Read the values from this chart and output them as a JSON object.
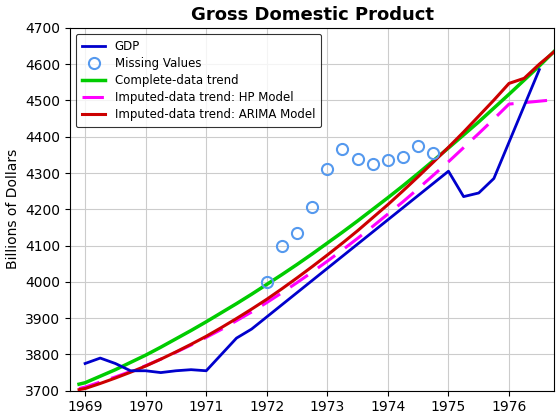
{
  "title": "Gross Domestic Product",
  "ylabel": "Billions of Dollars",
  "xlim": [
    1968.75,
    1976.75
  ],
  "ylim": [
    3700,
    4700
  ],
  "yticks": [
    3700,
    3800,
    3900,
    4000,
    4100,
    4200,
    4300,
    4400,
    4500,
    4600,
    4700
  ],
  "xticks": [
    1969,
    1970,
    1971,
    1972,
    1973,
    1974,
    1975,
    1976
  ],
  "gdp_x": [
    1969.0,
    1969.25,
    1969.5,
    1969.75,
    1970.0,
    1970.25,
    1970.5,
    1970.75,
    1971.0,
    1971.25,
    1971.5,
    1971.75,
    1975.0,
    1975.25,
    1975.5,
    1975.75,
    1976.0,
    1976.25,
    1976.5
  ],
  "gdp_y": [
    3775,
    3790,
    3775,
    3755,
    3755,
    3750,
    3755,
    3758,
    3755,
    3800,
    3845,
    3870,
    4305,
    4235,
    4245,
    4285,
    4385,
    4485,
    4585
  ],
  "missing_x": [
    1972.0,
    1972.25,
    1972.5,
    1972.75,
    1973.0,
    1973.25,
    1973.5,
    1973.75,
    1974.0,
    1974.25,
    1974.5,
    1974.75
  ],
  "missing_y": [
    4000,
    4100,
    4135,
    4205,
    4310,
    4365,
    4340,
    4325,
    4335,
    4345,
    4375,
    4355
  ],
  "complete_trend_x": [
    1968.9,
    1969.0,
    1969.25,
    1969.5,
    1969.75,
    1970.0,
    1970.25,
    1970.5,
    1970.75,
    1971.0,
    1971.25,
    1971.5,
    1971.75,
    1972.0,
    1972.25,
    1972.5,
    1972.75,
    1973.0,
    1973.25,
    1973.5,
    1973.75,
    1974.0,
    1974.25,
    1974.5,
    1974.75,
    1975.0,
    1975.25,
    1975.5,
    1975.75,
    1976.0,
    1976.25,
    1976.5,
    1976.75
  ],
  "complete_trend_y": [
    3718,
    3722,
    3740,
    3758,
    3778,
    3798,
    3820,
    3843,
    3866,
    3890,
    3915,
    3940,
    3966,
    3993,
    4020,
    4048,
    4077,
    4107,
    4137,
    4168,
    4200,
    4232,
    4265,
    4299,
    4334,
    4369,
    4405,
    4441,
    4479,
    4517,
    4556,
    4595,
    4636
  ],
  "hp_trend_x": [
    1968.9,
    1969.0,
    1969.25,
    1969.5,
    1969.75,
    1970.0,
    1970.25,
    1970.5,
    1970.75,
    1971.0,
    1971.25,
    1971.5,
    1971.75,
    1972.0,
    1972.25,
    1972.5,
    1972.75,
    1973.0,
    1973.25,
    1973.5,
    1973.75,
    1974.0,
    1974.25,
    1974.5,
    1974.75,
    1975.0,
    1975.25,
    1975.5,
    1975.75,
    1976.0,
    1976.25,
    1976.5,
    1976.75
  ],
  "hp_trend_y": [
    3706,
    3710,
    3724,
    3738,
    3753,
    3769,
    3787,
    3806,
    3826,
    3847,
    3869,
    3893,
    3917,
    3943,
    3970,
    3998,
    4027,
    4057,
    4088,
    4120,
    4153,
    4187,
    4221,
    4257,
    4294,
    4331,
    4370,
    4409,
    4449,
    4490,
    4494,
    4498,
    4502
  ],
  "arima_trend_x": [
    1968.9,
    1969.0,
    1969.25,
    1969.5,
    1969.75,
    1970.0,
    1970.25,
    1970.5,
    1970.75,
    1971.0,
    1971.25,
    1971.5,
    1971.75,
    1972.0,
    1972.25,
    1972.5,
    1972.75,
    1973.0,
    1973.25,
    1973.5,
    1973.75,
    1974.0,
    1974.25,
    1974.5,
    1974.75,
    1975.0,
    1975.25,
    1975.5,
    1975.75,
    1976.0,
    1976.25,
    1976.5,
    1976.75
  ],
  "arima_trend_y": [
    3703,
    3706,
    3720,
    3735,
    3751,
    3768,
    3787,
    3807,
    3828,
    3850,
    3874,
    3899,
    3925,
    3952,
    3981,
    4011,
    4042,
    4074,
    4107,
    4141,
    4177,
    4213,
    4251,
    4290,
    4330,
    4371,
    4413,
    4457,
    4501,
    4547,
    4561,
    4600,
    4635
  ],
  "gdp_color": "#0000cc",
  "missing_color": "#5599ee",
  "complete_color": "#00cc00",
  "hp_color": "#ff00ff",
  "arima_color": "#cc0000",
  "background_color": "#ffffff",
  "grid_color": "#cccccc"
}
